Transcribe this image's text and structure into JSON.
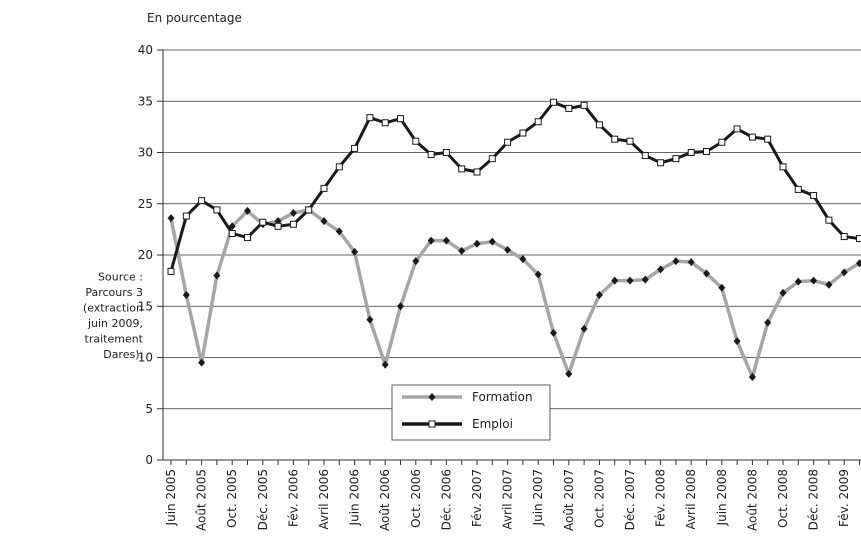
{
  "chart_data": {
    "type": "line",
    "unit_label": "En pourcentage",
    "source_note": [
      "Source :",
      "Parcours 3",
      "(extraction",
      "juin 2009,",
      "traitement",
      "Dares)."
    ],
    "categories": [
      "Juin 2005",
      null,
      "Août 2005",
      null,
      "Oct. 2005",
      null,
      "Déc. 2005",
      null,
      "Fév. 2006",
      null,
      "Avril 2006",
      null,
      "Juin 2006",
      null,
      "Août 2006",
      null,
      "Oct. 2006",
      null,
      "Déc. 2006",
      null,
      "Fév. 2007",
      null,
      "Avril 2007",
      null,
      "Juin 2007",
      null,
      "Août 2007",
      null,
      "Oct. 2007",
      null,
      "Déc. 2007",
      null,
      "Fév. 2008",
      null,
      "Avril 2008",
      null,
      "Juin 2008",
      null,
      "Août 2008",
      null,
      "Oct. 2008",
      null,
      "Déc. 2008",
      null,
      "Fév. 2009",
      null
    ],
    "series": [
      {
        "name": "Formation",
        "color": "#a6a6a6",
        "marker": "diamond",
        "values": [
          23.6,
          16.1,
          9.5,
          18,
          22.8,
          24.3,
          23,
          23.3,
          24.1,
          24.4,
          23.3,
          22.3,
          20.3,
          13.7,
          9.3,
          15,
          19.4,
          21.4,
          21.4,
          20.4,
          21.1,
          21.3,
          20.5,
          19.6,
          18.1,
          12.4,
          8.4,
          12.8,
          16.1,
          17.5,
          17.5,
          17.6,
          18.6,
          19.4,
          19.3,
          18.2,
          16.8,
          11.6,
          8.1,
          13.4,
          16.3,
          17.4,
          17.5,
          17.1,
          18.3,
          19.2
        ]
      },
      {
        "name": "Emploi",
        "color": "#1a1a1a",
        "marker": "square",
        "values": [
          18.4,
          23.8,
          25.3,
          24.4,
          22.1,
          21.7,
          23.2,
          22.8,
          23,
          24.4,
          26.5,
          28.6,
          30.4,
          33.4,
          32.9,
          33.3,
          31.1,
          29.8,
          30,
          28.4,
          28.1,
          29.4,
          31,
          31.9,
          33,
          34.9,
          34.3,
          34.6,
          32.7,
          31.3,
          31.1,
          29.7,
          29,
          29.4,
          30,
          30.1,
          31,
          32.3,
          31.5,
          31.3,
          28.6,
          26.4,
          25.8,
          23.4,
          21.8,
          21.6
        ]
      }
    ],
    "ylim": [
      0,
      40
    ],
    "yticks": [
      0,
      5,
      10,
      15,
      20,
      25,
      30,
      35,
      40
    ],
    "grid": true
  }
}
